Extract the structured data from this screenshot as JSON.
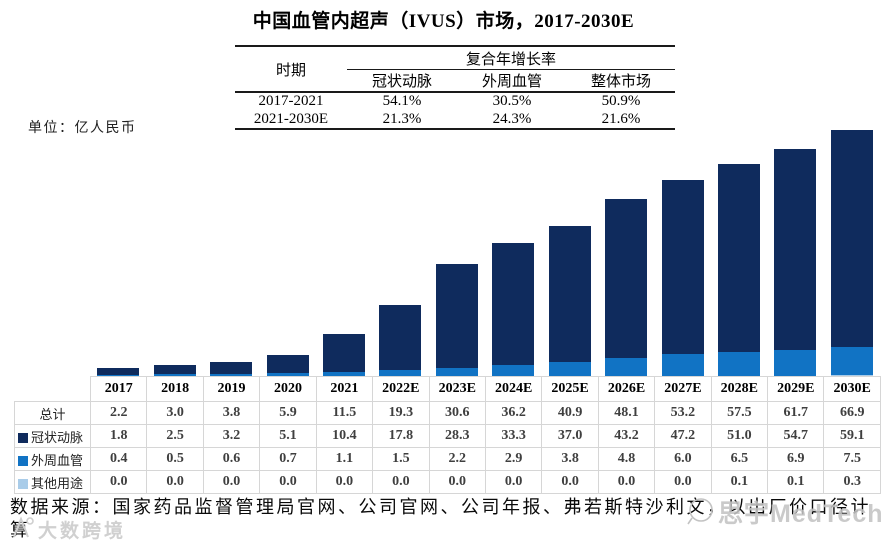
{
  "title": "中国血管内超声（IVUS）市场，2017-2030E",
  "unit_label": "单位：亿人民币",
  "cagr_table": {
    "period_header": "时期",
    "group_header": "复合年增长率",
    "columns": [
      "冠状动脉",
      "外周血管",
      "整体市场"
    ],
    "rows": [
      {
        "period": "2017-2021",
        "values": [
          "54.1%",
          "30.5%",
          "50.9%"
        ]
      },
      {
        "period": "2021-2030E",
        "values": [
          "21.3%",
          "24.3%",
          "21.6%"
        ]
      }
    ]
  },
  "chart_data": {
    "type": "bar",
    "stacked": true,
    "title": "中国血管内超声（IVUS）市场，2017-2030E",
    "ylabel": "亿人民币",
    "ylim": [
      0,
      68
    ],
    "grid": false,
    "legend_position": "left-of-table-rows",
    "categories": [
      "2017",
      "2018",
      "2019",
      "2020",
      "2021",
      "2022E",
      "2023E",
      "2024E",
      "2025E",
      "2026E",
      "2027E",
      "2028E",
      "2029E",
      "2030E"
    ],
    "series": [
      {
        "name": "冠状动脉",
        "color": "#0f2b5d",
        "values": [
          "1.8",
          "2.5",
          "3.2",
          "5.1",
          "10.4",
          "17.8",
          "28.3",
          "33.3",
          "37.0",
          "43.2",
          "47.2",
          "51.0",
          "54.7",
          "59.1"
        ]
      },
      {
        "name": "外周血管",
        "color": "#1173c4",
        "values": [
          "0.4",
          "0.5",
          "0.6",
          "0.7",
          "1.1",
          "1.5",
          "2.2",
          "2.9",
          "3.8",
          "4.8",
          "6.0",
          "6.5",
          "6.9",
          "7.5"
        ]
      },
      {
        "name": "其他用途",
        "color": "#a9cce9",
        "values": [
          "0.0",
          "0.0",
          "0.0",
          "0.0",
          "0.0",
          "0.0",
          "0.0",
          "0.0",
          "0.0",
          "0.0",
          "0.0",
          "0.1",
          "0.1",
          "0.3"
        ]
      }
    ],
    "totals": {
      "name": "总计",
      "values": [
        "2.2",
        "3.0",
        "3.8",
        "5.9",
        "11.5",
        "19.3",
        "30.6",
        "36.2",
        "40.9",
        "48.1",
        "53.2",
        "57.5",
        "61.7",
        "66.9"
      ]
    }
  },
  "source_note": {
    "line1": "数据来源：国家药品监督管理局官网、公司官网、公司年报、弗若斯特沙利文，以出厂价口径计",
    "line2": "算"
  },
  "watermarks": {
    "medtech": "思宇MedTech",
    "dashu": "大数跨境"
  }
}
